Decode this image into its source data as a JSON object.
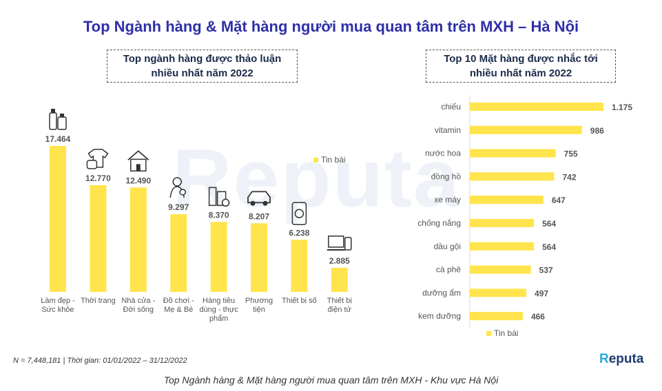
{
  "title": "Top Ngành hàng & Mặt hàng người mua quan tâm trên MXH – Hà Nội",
  "watermark_text": "Reputa",
  "left_panel": {
    "heading_line1": "Top ngành hàng được thảo luận",
    "heading_line2": "nhiều nhất năm 2022"
  },
  "right_panel": {
    "heading_line1": "Top 10 Mặt hàng được nhắc tới",
    "heading_line2": "nhiều nhất năm 2022"
  },
  "footnote": "N = 7,448,181 | Thời gian: 01/01/2022 – 31/12/2022",
  "caption": "Top Ngành hàng & Mặt hàng người mua quan tâm trên MXH - Khu vực Hà Nội",
  "brand": {
    "first_letter": "R",
    "rest": "eputa"
  },
  "colors": {
    "bar": "#ffe44d",
    "title": "#2f2fa8",
    "label": "#555555",
    "brand_accent": "#29a8e0"
  },
  "chart_data": [
    {
      "type": "bar",
      "orientation": "vertical",
      "title": "Top ngành hàng được thảo luận nhiều nhất năm 2022",
      "categories": [
        [
          "Làm đẹp -",
          "Sức khỏe"
        ],
        [
          "Thời trang"
        ],
        [
          "Nhà cửa -",
          "Đời sống"
        ],
        [
          "Đồ chơi -",
          "Mẹ & Bé"
        ],
        [
          "Hàng tiêu",
          "dùng - thực",
          "phẩm"
        ],
        [
          "Phương",
          "tiện"
        ],
        [
          "Thiết bị số"
        ],
        [
          "Thiết bị",
          "điện tử"
        ]
      ],
      "values": [
        17464,
        12770,
        12490,
        9297,
        8370,
        8207,
        6238,
        2885
      ],
      "value_labels": [
        "17.464",
        "12.770",
        "12.490",
        "9.297",
        "8.370",
        "8.207",
        "6.238",
        "2.885"
      ],
      "icons": [
        "cosmetics-icon",
        "fashion-icon",
        "house-icon",
        "mother-baby-icon",
        "grocery-icon",
        "car-icon",
        "smartphone-icon",
        "electronics-icon"
      ],
      "series": [
        {
          "name": "Tin bài",
          "values": [
            17464,
            12770,
            12490,
            9297,
            8370,
            8207,
            6238,
            2885
          ]
        }
      ],
      "legend": "right",
      "ylim": [
        0,
        17464
      ],
      "grid": false
    },
    {
      "type": "bar",
      "orientation": "horizontal",
      "title": "Top 10 Mặt hàng được nhắc tới nhiều nhất năm 2022",
      "categories": [
        "chiếu",
        "vitamin",
        "nước hoa",
        "đồng hồ",
        "xe máy",
        "chống nắng",
        "dầu gội",
        "cà phê",
        "dưỡng ẩm",
        "kem dưỡng"
      ],
      "values": [
        1175,
        986,
        755,
        742,
        647,
        564,
        564,
        537,
        497,
        466
      ],
      "value_labels": [
        "1.175",
        "986",
        "755",
        "742",
        "647",
        "564",
        "564",
        "537",
        "497",
        "466"
      ],
      "series": [
        {
          "name": "Tin bài",
          "values": [
            1175,
            986,
            755,
            742,
            647,
            564,
            564,
            537,
            497,
            466
          ]
        }
      ],
      "legend": "bottom",
      "xlim": [
        0,
        1175
      ],
      "grid": false
    }
  ]
}
